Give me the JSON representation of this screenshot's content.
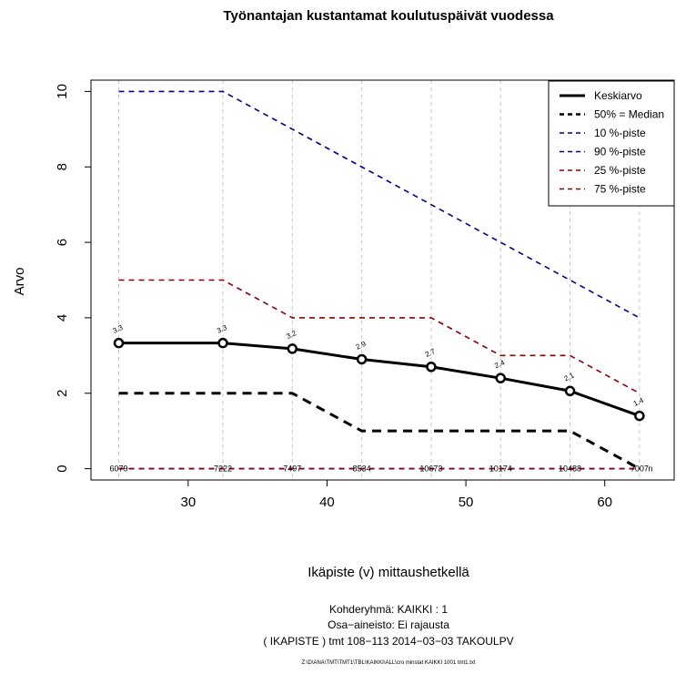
{
  "chart_data": {
    "type": "line",
    "title": "Työnantajan kustantamat koulutuspäivät vuodessa",
    "xlabel": "Ikäpiste (v) mittaushetkellä",
    "ylabel": "Arvo",
    "xlim": [
      23,
      65
    ],
    "ylim": [
      -0.3,
      10.3
    ],
    "x_ticks": [
      30,
      40,
      50,
      60
    ],
    "y_ticks": [
      0,
      2,
      4,
      6,
      8,
      10
    ],
    "x": [
      25,
      32.5,
      37.5,
      42.5,
      47.5,
      52.5,
      57.5,
      62.5
    ],
    "series": [
      {
        "name": "Keskiarvo",
        "color": "#000000",
        "style": "solid",
        "values": [
          3.33,
          3.33,
          3.18,
          2.9,
          2.7,
          2.4,
          2.06,
          1.4
        ]
      },
      {
        "name": "50% = Median",
        "color": "#000000",
        "style": "dashed",
        "values": [
          2,
          2,
          2,
          1,
          1,
          1,
          1,
          0
        ]
      },
      {
        "name": "10 %-piste",
        "color": "#00008B",
        "style": "dashed",
        "values": [
          0,
          0,
          0,
          0,
          0,
          0,
          0,
          0
        ]
      },
      {
        "name": "90 %-piste",
        "color": "#00008B",
        "style": "dashed",
        "values": [
          10,
          10,
          9,
          8,
          7,
          6,
          5,
          4
        ]
      },
      {
        "name": "25 %-piste",
        "color": "#8B0000",
        "style": "dashed",
        "values": [
          0,
          0,
          0,
          0,
          0,
          0,
          0,
          0
        ]
      },
      {
        "name": "75 %-piste",
        "color": "#8B0000",
        "style": "dashed",
        "values": [
          5,
          5,
          4,
          4,
          4,
          3,
          3,
          2
        ]
      }
    ],
    "mean_labels": [
      "3.3",
      "3.3",
      "3.2",
      "2.9",
      "2.7",
      "2.4",
      "2.1",
      "1.4"
    ],
    "counts": [
      "6079",
      "7222",
      "7497",
      "8534",
      "10673",
      "10174",
      "10488",
      "7007"
    ],
    "count_suffix": "n",
    "grid": true,
    "legend_position": "top-right"
  },
  "footer": {
    "line1": "Kohderyhmä:  KAIKKI : 1",
    "line2": "Osa−aineisto:  Ei rajausta",
    "line3": "( IKAPISTE )  tmt 108−113 2014−03−03 TAKOULPV",
    "path": "Z:\\D\\ANA\\TMT\\TMT1\\TBL\\KAIKKI\\ALL\\cro  minstat  KAIKKI  1001  tmt1.txt"
  }
}
